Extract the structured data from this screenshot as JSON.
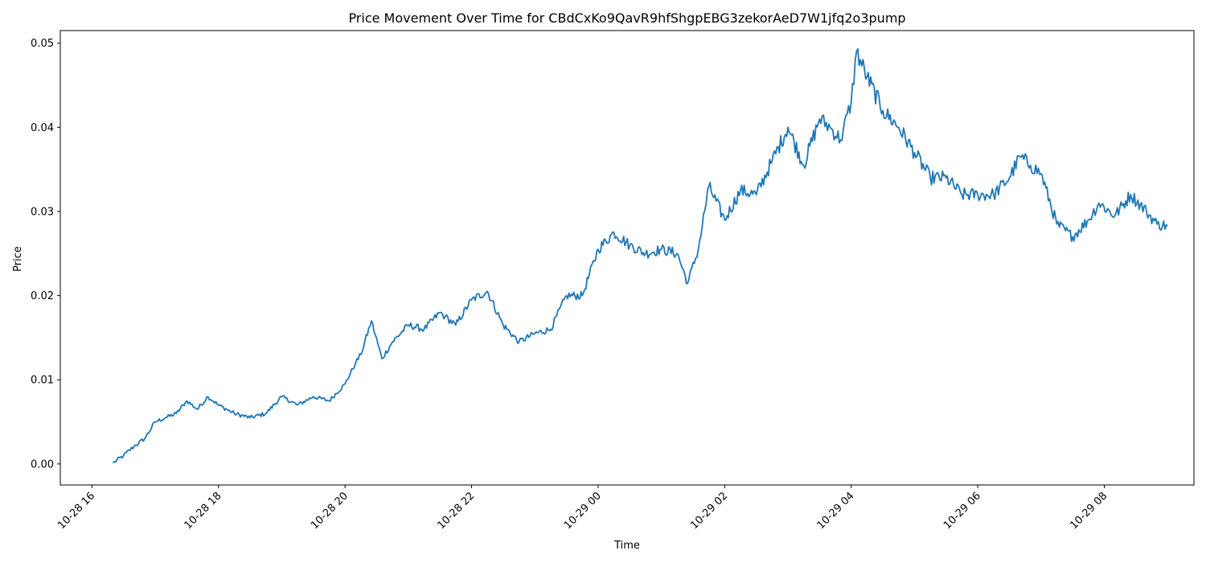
{
  "chart_data": {
    "type": "line",
    "title": "Price Movement Over Time for CBdCxKo9QavR9hfShgpEBG3zekorAeD7W1jfq2o3pump",
    "xlabel": "Time",
    "ylabel": "Price",
    "x_ticks": [
      "10-28 16",
      "10-28 18",
      "10-28 20",
      "10-28 22",
      "10-29 00",
      "10-29 02",
      "10-29 04",
      "10-29 06",
      "10-29 08"
    ],
    "y_ticks": [
      "0.00",
      "0.01",
      "0.02",
      "0.03",
      "0.04",
      "0.05"
    ],
    "xlim": [
      "10-28 15:30",
      "10-29 09:25"
    ],
    "ylim": [
      -0.0025,
      0.0515
    ],
    "grid": false,
    "legend": "none",
    "line_color": "#1f77b4",
    "series": [
      {
        "x": [
          "10-28 16:20",
          "10-28 16:30",
          "10-28 16:40",
          "10-28 16:50",
          "10-28 17:00",
          "10-28 17:10",
          "10-28 17:20",
          "10-28 17:30",
          "10-28 17:40",
          "10-28 17:50",
          "10-28 18:00",
          "10-28 18:15",
          "10-28 18:30",
          "10-28 18:45",
          "10-28 19:00",
          "10-28 19:15",
          "10-28 19:30",
          "10-28 19:45",
          "10-28 20:00",
          "10-28 20:10",
          "10-28 20:15",
          "10-28 20:25",
          "10-28 20:35",
          "10-28 20:45",
          "10-28 21:00",
          "10-28 21:15",
          "10-28 21:30",
          "10-28 21:35",
          "10-28 21:45",
          "10-28 22:00",
          "10-28 22:15",
          "10-28 22:30",
          "10-28 22:45",
          "10-28 23:00",
          "10-28 23:15",
          "10-28 23:30",
          "10-28 23:45",
          "10-29 00:00",
          "10-29 00:15",
          "10-29 00:30",
          "10-29 00:45",
          "10-29 01:00",
          "10-29 01:15",
          "10-29 01:25",
          "10-29 01:35",
          "10-29 01:45",
          "10-29 02:00",
          "10-29 02:15",
          "10-29 02:30",
          "10-29 02:45",
          "10-29 03:00",
          "10-29 03:15",
          "10-29 03:30",
          "10-29 03:40",
          "10-29 03:50",
          "10-29 04:00",
          "10-29 04:05",
          "10-29 04:15",
          "10-29 04:30",
          "10-29 04:45",
          "10-29 05:00",
          "10-29 05:15",
          "10-29 05:30",
          "10-29 05:45",
          "10-29 06:00",
          "10-29 06:15",
          "10-29 06:30",
          "10-29 06:40",
          "10-29 06:50",
          "10-29 07:00",
          "10-29 07:15",
          "10-29 07:30",
          "10-29 07:45",
          "10-29 07:55",
          "10-29 08:10",
          "10-29 08:25",
          "10-29 08:40",
          "10-29 08:50",
          "10-29 09:00"
        ],
        "y": [
          0.0001,
          0.001,
          0.0021,
          0.003,
          0.005,
          0.0055,
          0.006,
          0.0075,
          0.0065,
          0.008,
          0.007,
          0.006,
          0.0055,
          0.006,
          0.008,
          0.007,
          0.008,
          0.0075,
          0.0095,
          0.012,
          0.013,
          0.017,
          0.0125,
          0.0145,
          0.0165,
          0.016,
          0.018,
          0.0175,
          0.0165,
          0.0195,
          0.0205,
          0.0165,
          0.0145,
          0.0155,
          0.016,
          0.02,
          0.02,
          0.0255,
          0.0275,
          0.026,
          0.025,
          0.0255,
          0.025,
          0.0215,
          0.0255,
          0.033,
          0.029,
          0.0325,
          0.032,
          0.036,
          0.04,
          0.0355,
          0.041,
          0.04,
          0.0385,
          0.043,
          0.049,
          0.046,
          0.042,
          0.04,
          0.037,
          0.034,
          0.034,
          0.032,
          0.032,
          0.032,
          0.034,
          0.0365,
          0.0355,
          0.0345,
          0.0285,
          0.027,
          0.029,
          0.031,
          0.0295,
          0.032,
          0.03,
          0.0285,
          0.0283
        ]
      }
    ]
  }
}
